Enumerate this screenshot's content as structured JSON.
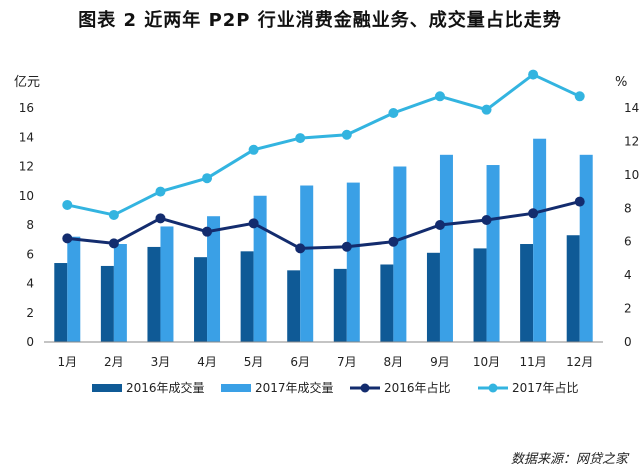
{
  "title": "图表 2 近两年 P2P 行业消费金融业务、成交量占比走势",
  "source": "数据来源：网贷之家",
  "chart_data": {
    "type": "bar",
    "categories": [
      "1月",
      "2月",
      "3月",
      "4月",
      "5月",
      "6月",
      "7月",
      "8月",
      "9月",
      "10月",
      "11月",
      "12月"
    ],
    "series": [
      {
        "name": "2016年成交量",
        "kind": "bar",
        "axis": "left",
        "color": "#0f5a96",
        "values": [
          5.4,
          5.2,
          6.5,
          5.8,
          6.2,
          4.9,
          5.0,
          5.3,
          6.1,
          6.4,
          6.7,
          7.3
        ]
      },
      {
        "name": "2017年成交量",
        "kind": "bar",
        "axis": "left",
        "color": "#3aa0e6",
        "values": [
          7.2,
          6.7,
          7.9,
          8.6,
          10.0,
          10.7,
          10.9,
          12.0,
          12.8,
          12.1,
          13.9,
          12.8
        ]
      },
      {
        "name": "2016年占比",
        "kind": "line",
        "axis": "right",
        "color": "#132c6e",
        "values": [
          6.2,
          5.9,
          7.4,
          6.6,
          7.1,
          5.6,
          5.7,
          6.0,
          7.0,
          7.3,
          7.7,
          8.4
        ]
      },
      {
        "name": "2017年占比",
        "kind": "line",
        "axis": "right",
        "color": "#33b4e0",
        "values": [
          8.2,
          7.6,
          9.0,
          9.8,
          11.5,
          12.2,
          12.4,
          13.7,
          14.7,
          13.9,
          16.0,
          14.7
        ]
      }
    ],
    "yleft": {
      "label": "亿元",
      "ticks": [
        0,
        2,
        4,
        6,
        8,
        10,
        12,
        14,
        16
      ],
      "lim": [
        0,
        16
      ]
    },
    "yright": {
      "label": "%",
      "ticks": [
        0,
        2,
        4,
        6,
        8,
        10,
        12,
        14
      ],
      "lim": [
        0,
        14
      ]
    },
    "legend_position": "bottom",
    "grid": false
  }
}
